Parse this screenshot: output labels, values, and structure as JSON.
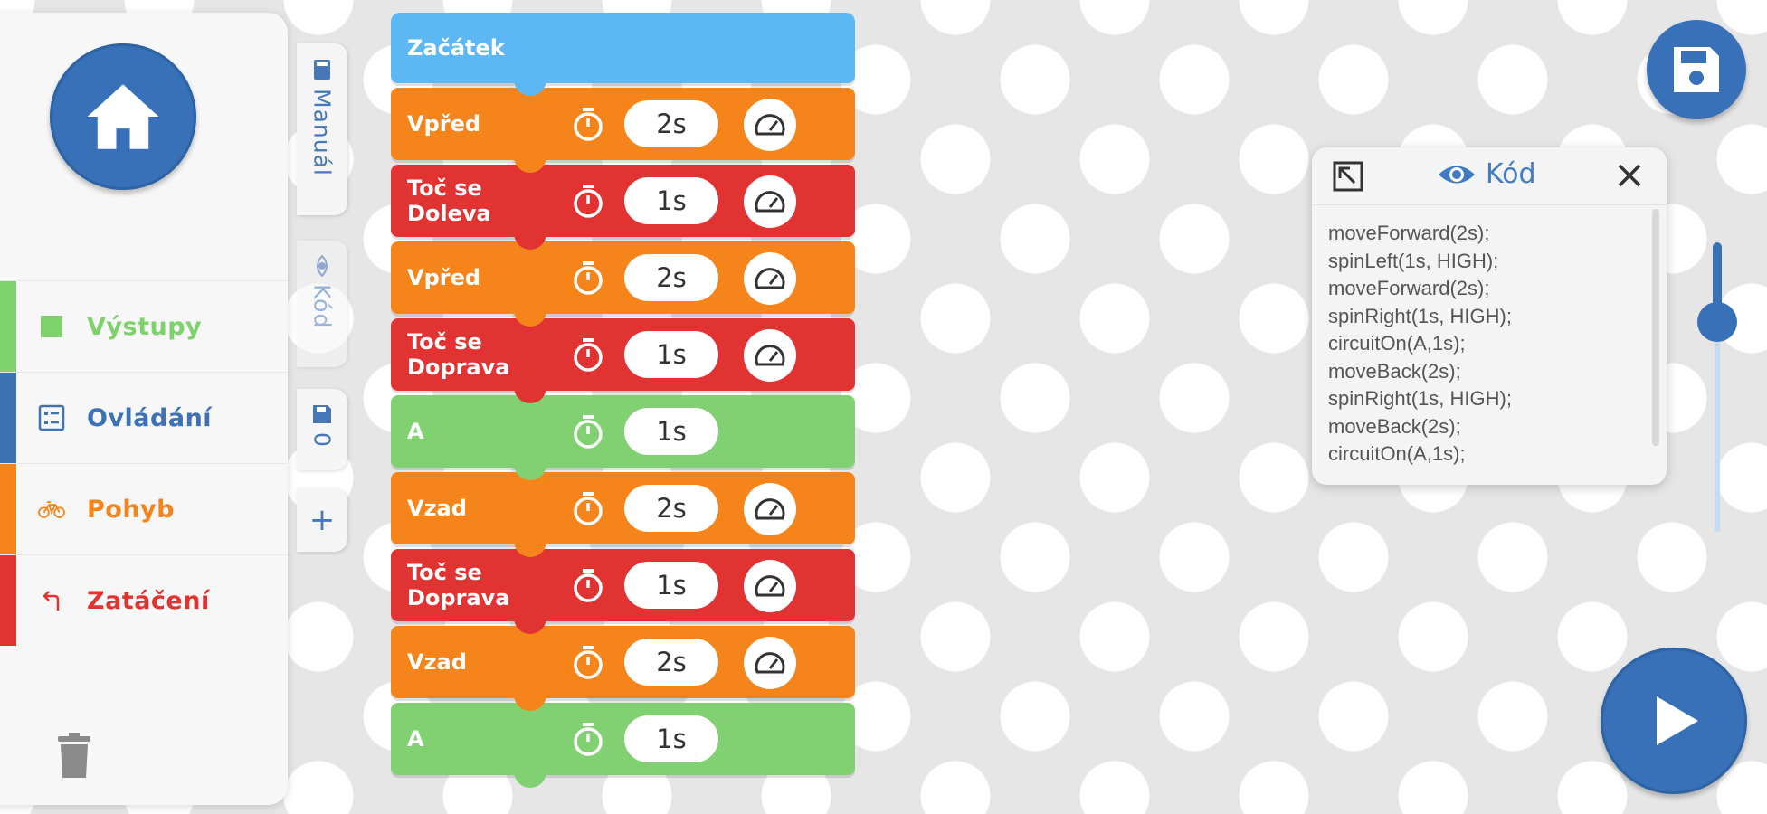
{
  "sidebar": {
    "categories": [
      {
        "label": "Výstupy",
        "color": "#7ed26b",
        "icon": "square-icon"
      },
      {
        "label": "Ovládání",
        "color": "#3f72b5",
        "icon": "control-icon"
      },
      {
        "label": "Pohyb",
        "color": "#f5841b",
        "icon": "bicycle-icon"
      },
      {
        "label": "Zatáčení",
        "color": "#e23333",
        "icon": "turn-icon"
      }
    ]
  },
  "tabs": {
    "manual": "Manuál",
    "kod": "Kód",
    "save_count": "0",
    "add": "+"
  },
  "program": {
    "blocks": [
      {
        "label": "Začátek",
        "type": "start",
        "color": "#5cb7f3"
      },
      {
        "label": "Vpřed",
        "type": "move",
        "color": "#f5841b",
        "duration": "2s",
        "has_speed": true
      },
      {
        "label": "Toč se\nDoleva",
        "type": "turn",
        "color": "#e23333",
        "duration": "1s",
        "has_speed": true
      },
      {
        "label": "Vpřed",
        "type": "move",
        "color": "#f5841b",
        "duration": "2s",
        "has_speed": true
      },
      {
        "label": "Toč se\nDoprava",
        "type": "turn",
        "color": "#e23333",
        "duration": "1s",
        "has_speed": true
      },
      {
        "label": "A",
        "type": "output",
        "color": "#81d072",
        "duration": "1s",
        "has_speed": false
      },
      {
        "label": "Vzad",
        "type": "move",
        "color": "#f5841b",
        "duration": "2s",
        "has_speed": true
      },
      {
        "label": "Toč se\nDoprava",
        "type": "turn",
        "color": "#e23333",
        "duration": "1s",
        "has_speed": true
      },
      {
        "label": "Vzad",
        "type": "move",
        "color": "#f5841b",
        "duration": "2s",
        "has_speed": true
      },
      {
        "label": "A",
        "type": "output",
        "color": "#81d072",
        "duration": "1s",
        "has_speed": false
      }
    ]
  },
  "code_panel": {
    "title": "Kód",
    "lines": [
      "moveForward(2s);",
      "spinLeft(1s, HIGH);",
      "moveForward(2s);",
      "spinRight(1s, HIGH);",
      "circuitOn(A,1s);",
      "moveBack(2s);",
      "spinRight(1s, HIGH);",
      "moveBack(2s);",
      "circuitOn(A,1s);"
    ]
  },
  "zoom_slider": {
    "value": 0.75
  },
  "colors": {
    "primary": "#3871b8",
    "start": "#5cb7f3",
    "move": "#f5841b",
    "turn": "#e23333",
    "output": "#81d072"
  }
}
